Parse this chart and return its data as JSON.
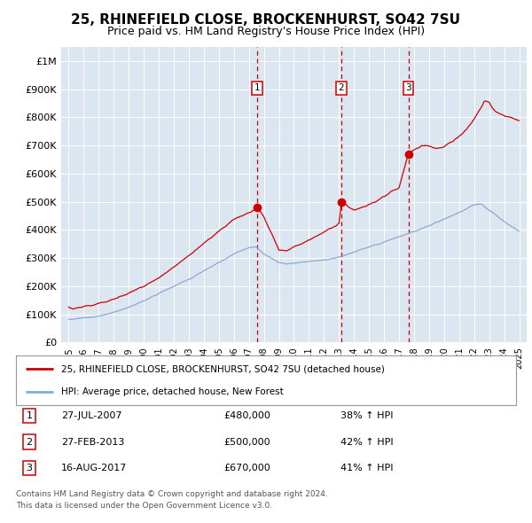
{
  "title": "25, RHINEFIELD CLOSE, BROCKENHURST, SO42 7SU",
  "subtitle": "Price paid vs. HM Land Registry's House Price Index (HPI)",
  "title_fontsize": 11,
  "subtitle_fontsize": 9,
  "background_color": "#ffffff",
  "plot_bg_color": "#dce6f1",
  "grid_color": "#ffffff",
  "sale_color": "#cc0000",
  "hpi_color": "#88aad4",
  "vline_color": "#cc0000",
  "sale_dates": [
    2007.57,
    2013.16,
    2017.62
  ],
  "sale_prices": [
    480000,
    500000,
    670000
  ],
  "sale_labels": [
    "1",
    "2",
    "3"
  ],
  "legend_sale": "25, RHINEFIELD CLOSE, BROCKENHURST, SO42 7SU (detached house)",
  "legend_hpi": "HPI: Average price, detached house, New Forest",
  "table_rows": [
    [
      "1",
      "27-JUL-2007",
      "£480,000",
      "38% ↑ HPI"
    ],
    [
      "2",
      "27-FEB-2013",
      "£500,000",
      "42% ↑ HPI"
    ],
    [
      "3",
      "16-AUG-2017",
      "£670,000",
      "41% ↑ HPI"
    ]
  ],
  "footnote1": "Contains HM Land Registry data © Crown copyright and database right 2024.",
  "footnote2": "This data is licensed under the Open Government Licence v3.0.",
  "ylim_max": 1050000,
  "yticks": [
    0,
    100000,
    200000,
    300000,
    400000,
    500000,
    600000,
    700000,
    800000,
    900000,
    1000000
  ],
  "ytick_labels": [
    "£0",
    "£100K",
    "£200K",
    "£300K",
    "£400K",
    "£500K",
    "£600K",
    "£700K",
    "£800K",
    "£900K",
    "£1M"
  ],
  "xlim_start": 1994.5,
  "xlim_end": 2025.5,
  "xtick_years": [
    1995,
    1996,
    1997,
    1998,
    1999,
    2000,
    2001,
    2002,
    2003,
    2004,
    2005,
    2006,
    2007,
    2008,
    2009,
    2010,
    2011,
    2012,
    2013,
    2014,
    2015,
    2016,
    2017,
    2018,
    2019,
    2020,
    2021,
    2022,
    2023,
    2024,
    2025
  ]
}
